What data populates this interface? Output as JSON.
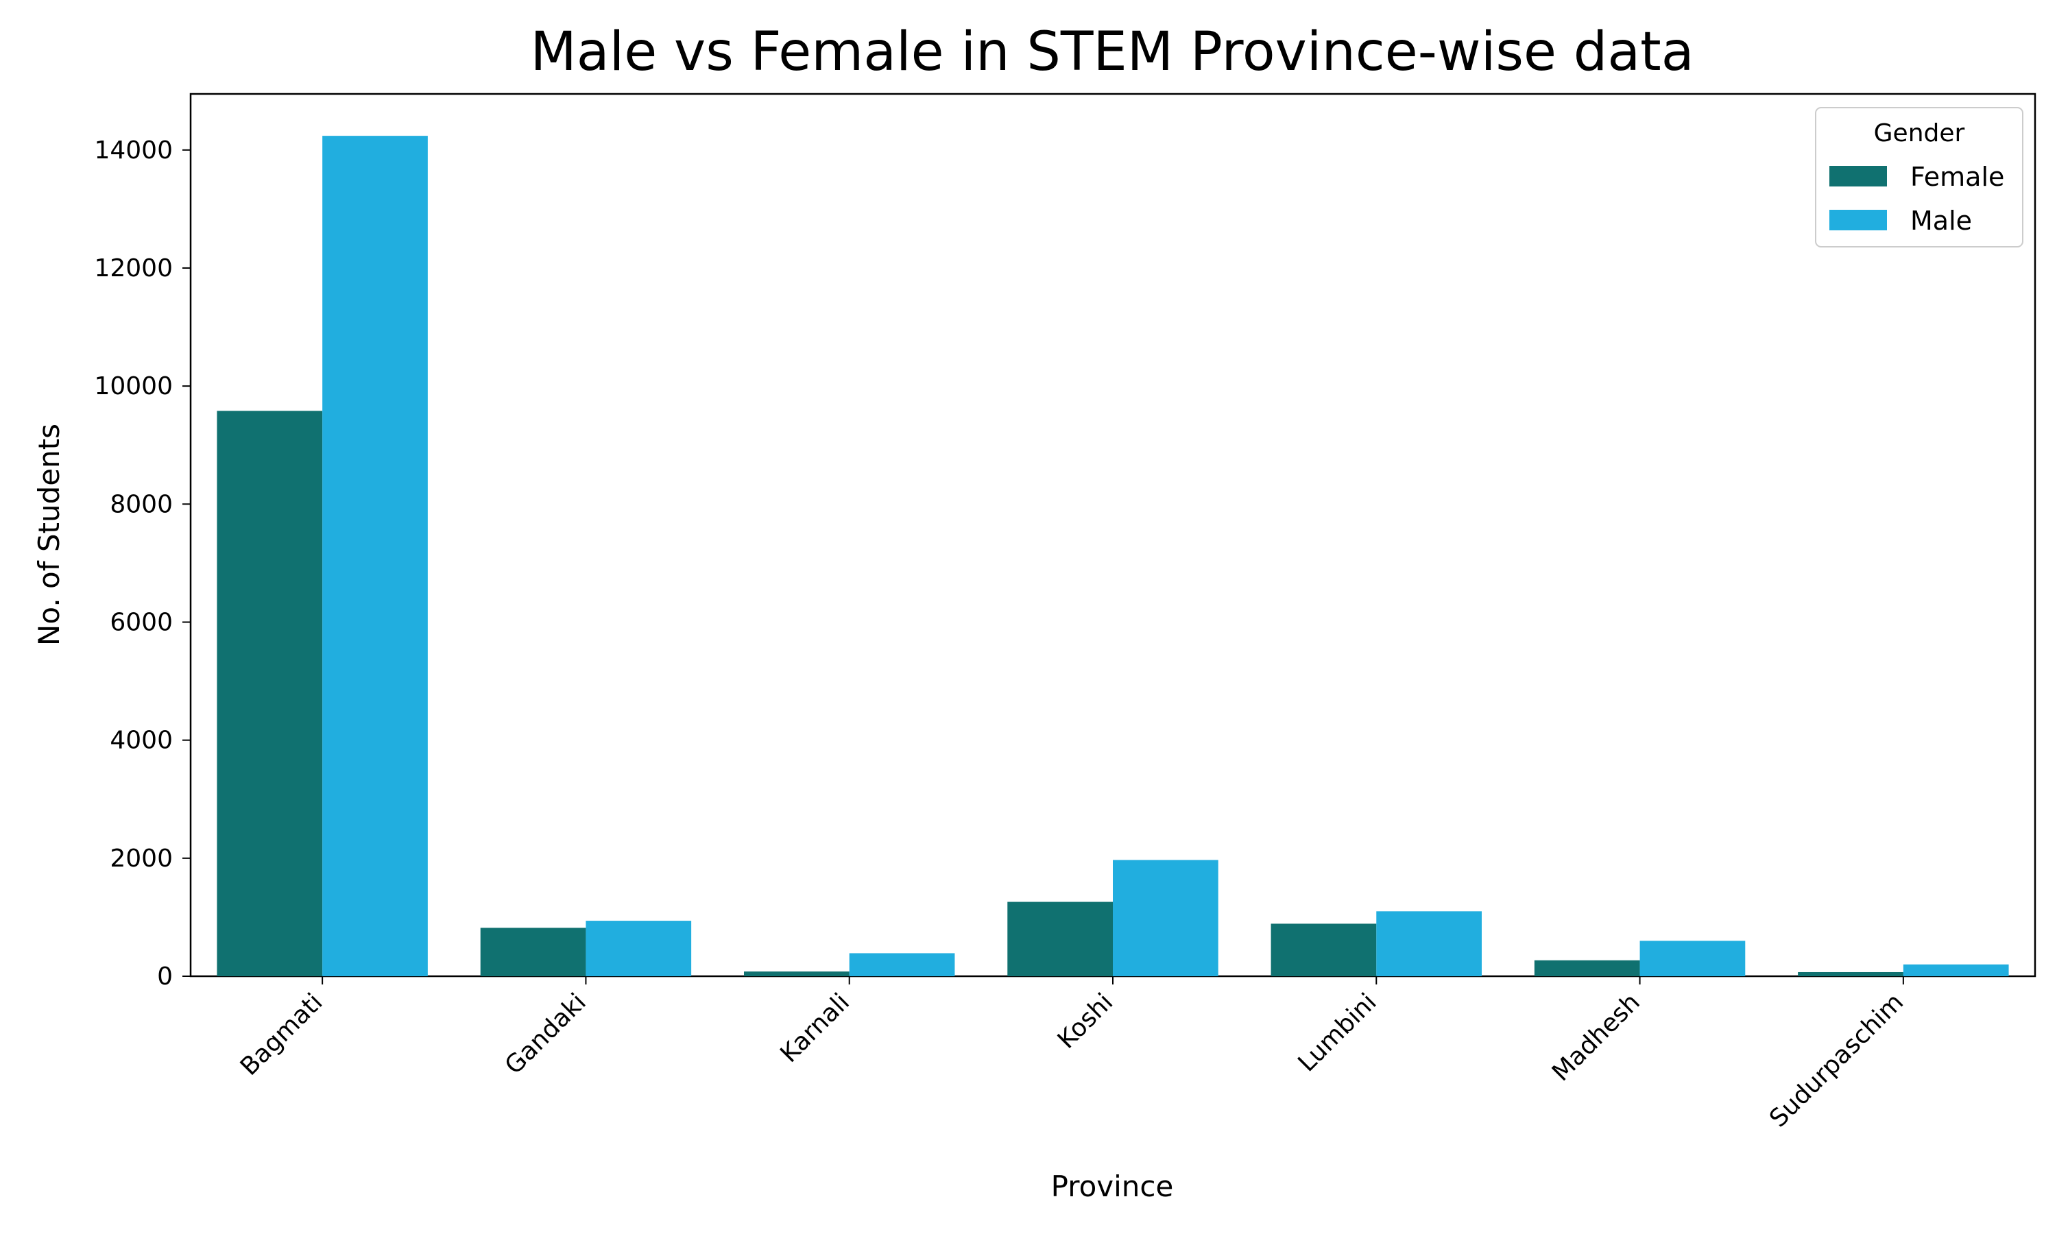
{
  "chart_data": {
    "type": "bar",
    "title": "Male vs Female in STEM Province-wise data",
    "xlabel": "Province",
    "ylabel": "No. of Students",
    "categories": [
      "Bagmati",
      "Gandaki",
      "Karnali",
      "Koshi",
      "Lumbini",
      "Madhesh",
      "Sudurpaschim"
    ],
    "series": [
      {
        "name": "Female",
        "color": "#107170",
        "values": [
          9580,
          820,
          80,
          1260,
          890,
          270,
          70
        ]
      },
      {
        "name": "Male",
        "color": "#21aedf",
        "values": [
          14240,
          940,
          390,
          1970,
          1100,
          600,
          200
        ]
      }
    ],
    "ylim": [
      0,
      14950
    ],
    "yticks": [
      0,
      2000,
      4000,
      6000,
      8000,
      10000,
      12000,
      14000
    ],
    "grid": false,
    "legend": {
      "title": "Gender",
      "position": "top-right"
    }
  }
}
